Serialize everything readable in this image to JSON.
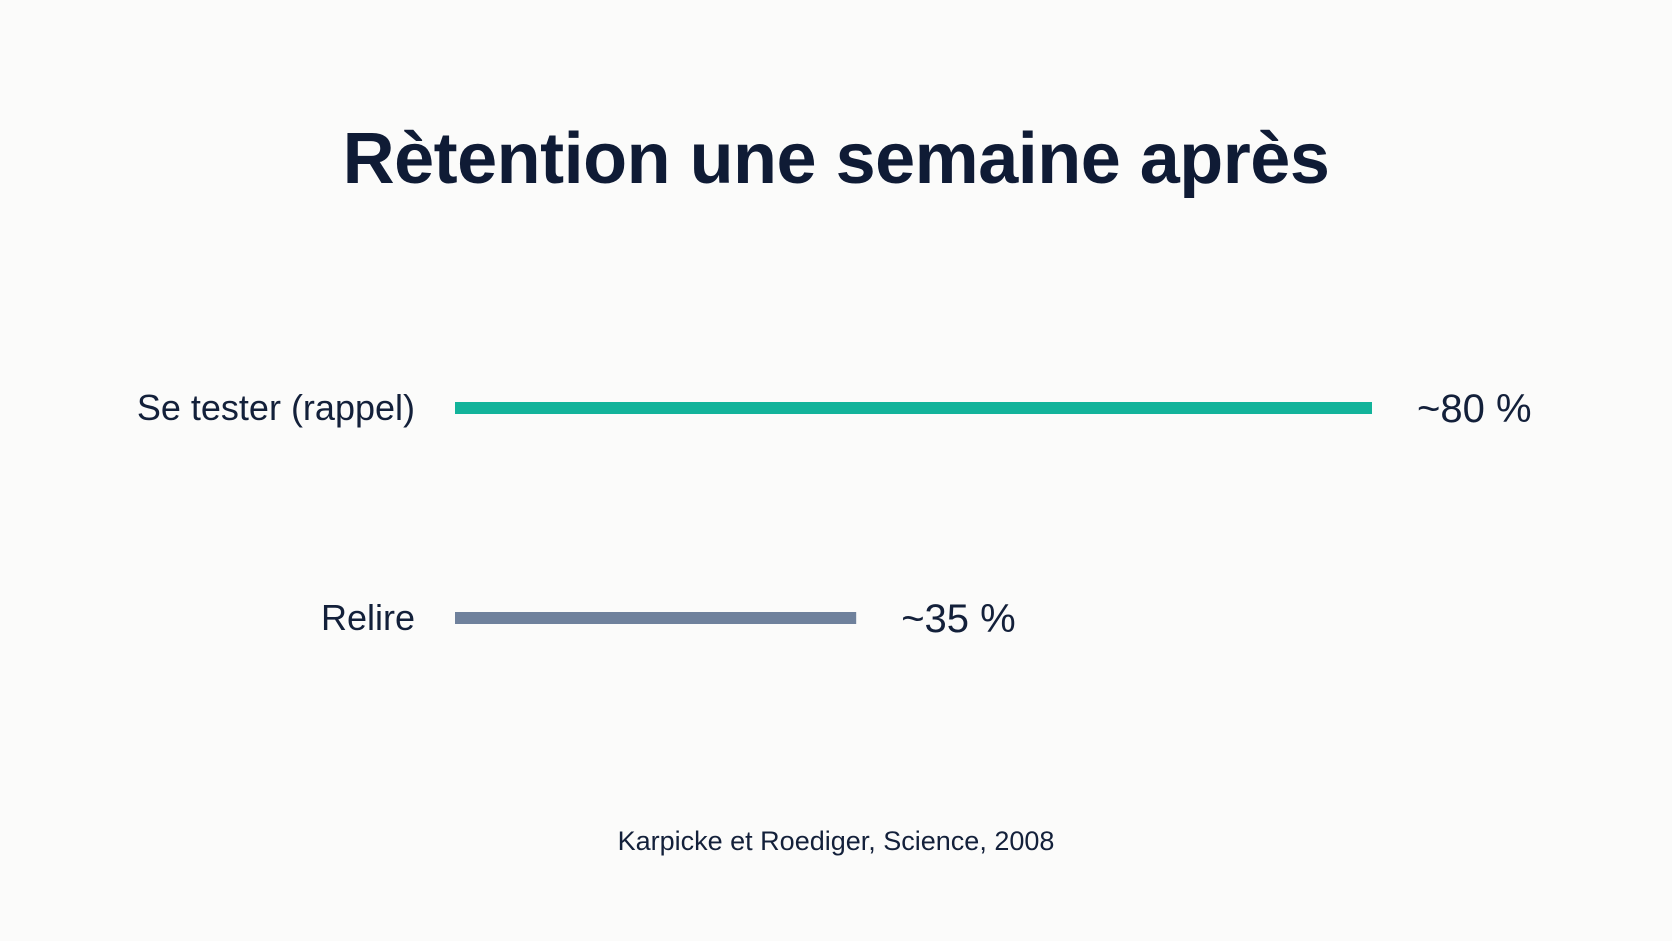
{
  "chart_data": {
    "type": "bar",
    "orientation": "horizontal",
    "title": "Rètention une semaine après",
    "categories": [
      "Se tester (rappel)",
      "Relire"
    ],
    "values": [
      80,
      35
    ],
    "value_labels": [
      "~80 %",
      "~35 %"
    ],
    "unit": "%",
    "xlim": [
      0,
      80
    ],
    "grid": false,
    "colors": [
      "#12b39a",
      "#6f819c"
    ],
    "source": "Karpicke et Roediger, Science, 2008"
  }
}
